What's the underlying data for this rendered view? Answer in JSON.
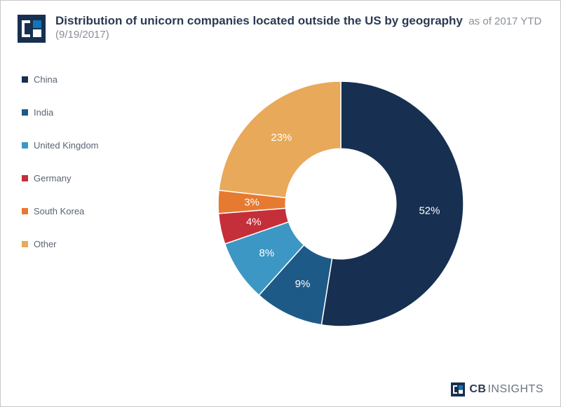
{
  "brand": {
    "name": "CBINSIGHTS",
    "logo_bg": "#173051",
    "logo_accent": "#1276b8"
  },
  "title": {
    "main": "Distribution of unicorn companies located outside the US by geography",
    "sub": "as of 2017 YTD (9/19/2017)",
    "color_main": "#2b3a52",
    "color_sub": "#8a8f98",
    "fontsize_main": 17,
    "fontsize_sub": 15
  },
  "chart": {
    "type": "donut",
    "background": "#ffffff",
    "inner_radius_ratio": 0.45,
    "label_color": "#ffffff",
    "label_fontsize": 15,
    "slices": [
      {
        "label": "China",
        "value": 52,
        "display": "52%",
        "color": "#173051"
      },
      {
        "label": "India",
        "value": 9,
        "display": "9%",
        "color": "#1d5a88"
      },
      {
        "label": "United Kingdom",
        "value": 8,
        "display": "8%",
        "color": "#3d97c4"
      },
      {
        "label": "Germany",
        "value": 4,
        "display": "4%",
        "color": "#c42f3a"
      },
      {
        "label": "South Korea",
        "value": 3,
        "display": "3%",
        "color": "#e77a31"
      },
      {
        "label": "Other",
        "value": 23,
        "display": "23%",
        "color": "#e8a95a"
      }
    ]
  },
  "legend": {
    "fontsize": 13,
    "text_color": "#5a6475",
    "swatch_size": 9
  }
}
